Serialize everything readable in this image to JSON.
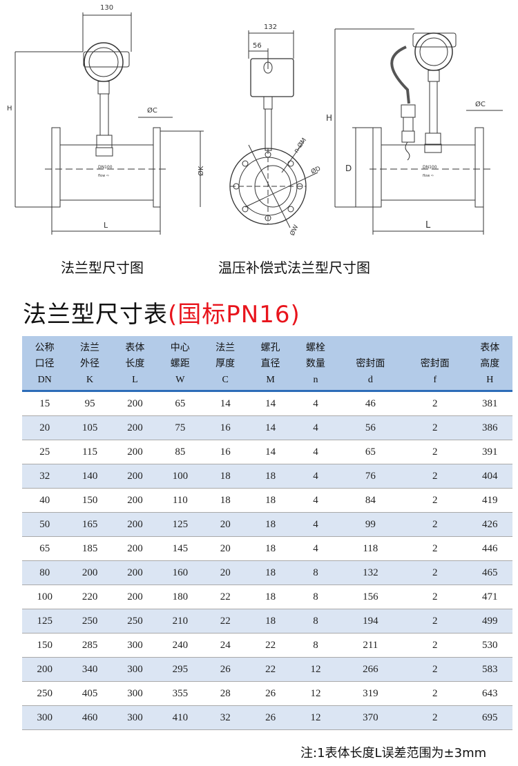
{
  "drawings": {
    "flange": {
      "caption": "法兰型尺寸图",
      "dim_width": "130",
      "dim_height": "H",
      "dim_length": "L",
      "dim_flange_thickness": "ØC",
      "dim_flange_od": "ØK",
      "nameplate": "DN100",
      "flow_mark": "flow ⇨"
    },
    "flange_side": {
      "dim_width": "132",
      "dim_offset": "56",
      "dim_bolt": "n-ØM",
      "dim_seal": "ØD",
      "dim_pcd": "ØW"
    },
    "compensated": {
      "caption": "温压补偿式法兰型尺寸图",
      "dim_height": "H",
      "dim_d": "D",
      "dim_length": "L",
      "dim_flange_thickness": "ØC",
      "nameplate": "DN100",
      "flow_mark": "flow ⇨"
    }
  },
  "table": {
    "title": "法兰型尺寸表",
    "title_suffix": "(国标PN16)",
    "title_suffix_color": "#e8141c",
    "header_color": "#b3cbe8",
    "alt_row_color": "#dbe5f3",
    "columns": [
      {
        "name": "公称口径",
        "line1": "公称",
        "line2": "口径",
        "code": "DN"
      },
      {
        "name": "法兰外径",
        "line1": "法兰",
        "line2": "外径",
        "code": "K"
      },
      {
        "name": "表体长度",
        "line1": "表体",
        "line2": "长度",
        "code": "L"
      },
      {
        "name": "中心螺距",
        "line1": "中心",
        "line2": "螺距",
        "code": "W"
      },
      {
        "name": "法兰厚度",
        "line1": "法兰",
        "line2": "厚度",
        "code": "C"
      },
      {
        "name": "螺孔直径",
        "line1": "螺孔",
        "line2": "直径",
        "code": "M"
      },
      {
        "name": "螺栓数量",
        "line1": "螺栓",
        "line2": "数量",
        "code": "n"
      },
      {
        "name": "密封面",
        "line1": "",
        "line2": "密封面",
        "code": "d"
      },
      {
        "name": "密封面",
        "line1": "",
        "line2": "密封面",
        "code": "f"
      },
      {
        "name": "表体高度",
        "line1": "表体",
        "line2": "高度",
        "code": "H"
      }
    ],
    "rows": [
      [
        "15",
        "95",
        "200",
        "65",
        "14",
        "14",
        "4",
        "46",
        "2",
        "381"
      ],
      [
        "20",
        "105",
        "200",
        "75",
        "16",
        "14",
        "4",
        "56",
        "2",
        "386"
      ],
      [
        "25",
        "115",
        "200",
        "85",
        "16",
        "14",
        "4",
        "65",
        "2",
        "391"
      ],
      [
        "32",
        "140",
        "200",
        "100",
        "18",
        "18",
        "4",
        "76",
        "2",
        "404"
      ],
      [
        "40",
        "150",
        "200",
        "110",
        "18",
        "18",
        "4",
        "84",
        "2",
        "419"
      ],
      [
        "50",
        "165",
        "200",
        "125",
        "20",
        "18",
        "4",
        "99",
        "2",
        "426"
      ],
      [
        "65",
        "185",
        "200",
        "145",
        "20",
        "18",
        "4",
        "118",
        "2",
        "446"
      ],
      [
        "80",
        "200",
        "200",
        "160",
        "20",
        "18",
        "8",
        "132",
        "2",
        "465"
      ],
      [
        "100",
        "220",
        "200",
        "180",
        "22",
        "18",
        "8",
        "156",
        "2",
        "471"
      ],
      [
        "125",
        "250",
        "250",
        "210",
        "22",
        "18",
        "8",
        "194",
        "2",
        "499"
      ],
      [
        "150",
        "285",
        "300",
        "240",
        "24",
        "22",
        "8",
        "211",
        "2",
        "530"
      ],
      [
        "200",
        "340",
        "300",
        "295",
        "26",
        "22",
        "12",
        "266",
        "2",
        "583"
      ],
      [
        "250",
        "405",
        "300",
        "355",
        "28",
        "26",
        "12",
        "319",
        "2",
        "643"
      ],
      [
        "300",
        "460",
        "300",
        "410",
        "32",
        "26",
        "12",
        "370",
        "2",
        "695"
      ]
    ]
  },
  "note": "注:1表体长度L误差范围为±3mm"
}
